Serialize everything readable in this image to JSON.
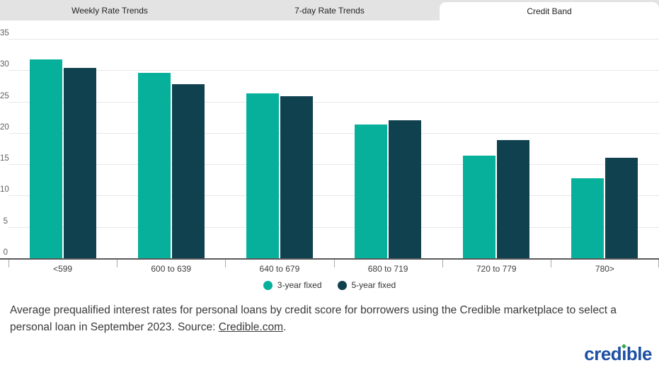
{
  "tabs": [
    {
      "label": "Weekly Rate Trends",
      "active": false
    },
    {
      "label": "7-day Rate Trends",
      "active": false
    },
    {
      "label": "Credit Band",
      "active": true
    }
  ],
  "chart_data": {
    "type": "bar",
    "categories": [
      "<599",
      "600 to 639",
      "640 to 679",
      "680 to 719",
      "720 to 779",
      "780>"
    ],
    "series": [
      {
        "name": "3-year fixed",
        "color": "#06b09b",
        "values": [
          31.7,
          29.6,
          26.3,
          21.3,
          16.4,
          12.8
        ]
      },
      {
        "name": "5-year fixed",
        "color": "#10414f",
        "values": [
          30.4,
          27.8,
          25.9,
          22.0,
          18.9,
          16.0
        ]
      }
    ],
    "title": "",
    "xlabel": "",
    "ylabel": "",
    "ylim": [
      0,
      35
    ],
    "yticks": [
      0,
      5,
      10,
      15,
      20,
      25,
      30,
      35
    ],
    "grid": true,
    "legend_position": "bottom"
  },
  "caption": {
    "text_before_link": "Average prequalified interest rates for personal loans by credit score for borrowers using the Credible marketplace to select a personal loan in September 2023. Source: ",
    "link_text": "Credible.com",
    "text_after_link": "."
  },
  "logo": {
    "text": "credible",
    "prefix": "cred",
    "i_char": "ı",
    "suffix": "ble",
    "brand_blue": "#1d50a3",
    "dot_green": "#3aa84f"
  },
  "colors": {
    "tab_bar_bg": "#e3e3e3",
    "active_tab_bg": "#ffffff",
    "gridline": "#e8e8e8",
    "axis": "#5a5a5a",
    "series_teal": "#06b09b",
    "series_dark_teal": "#10414f"
  }
}
